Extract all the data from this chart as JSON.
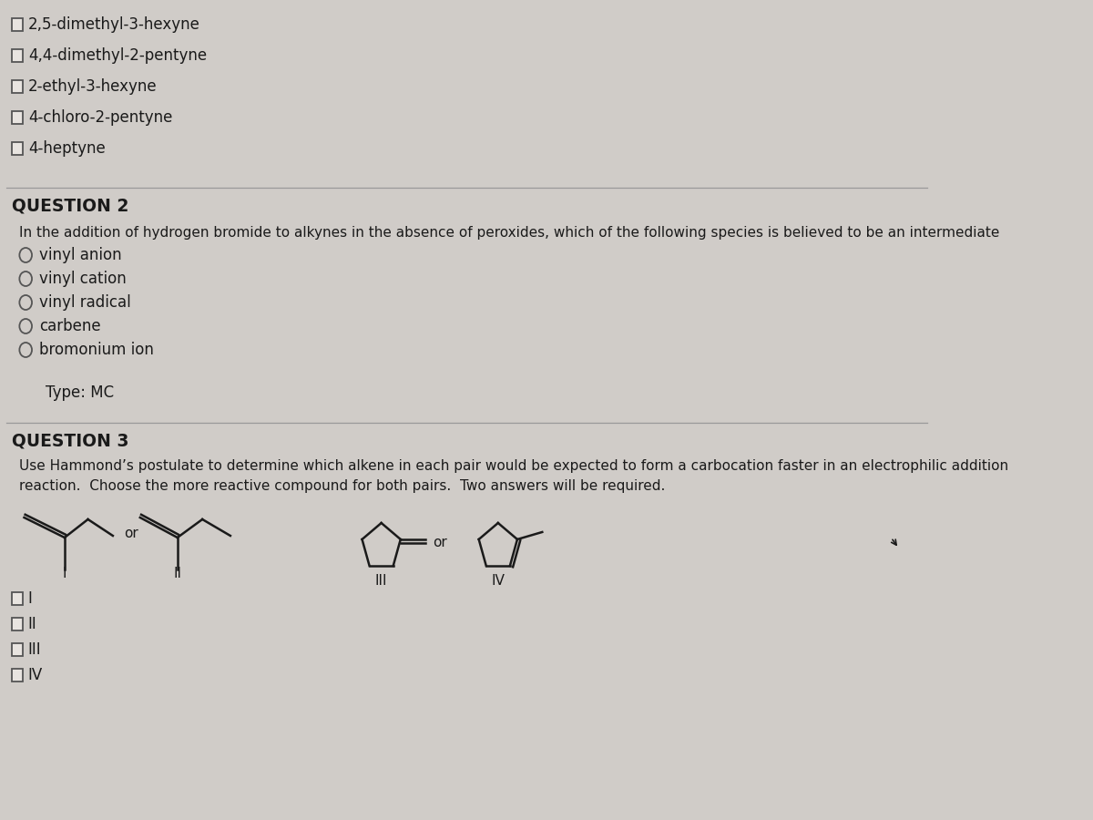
{
  "bg_color": "#d0ccc8",
  "text_color": "#1a1a1a",
  "section1": {
    "checkboxes": [
      "2,5-dimethyl-3-hexyne",
      "4,4-dimethyl-2-pentyne",
      "2-ethyl-3-hexyne",
      "4-chloro-2-pentyne",
      "4-heptyne"
    ]
  },
  "section2": {
    "header": "QUESTION 2",
    "question": "In the addition of hydrogen bromide to alkynes in the absence of peroxides, which of the following species is believed to be an intermediate",
    "options": [
      "vinyl anion",
      "vinyl cation",
      "vinyl radical",
      "carbene",
      "bromonium ion"
    ],
    "type_label": "Type: MC"
  },
  "section3": {
    "header": "QUESTION 3",
    "question_line1": "Use Hammond’s postulate to determine which alkene in each pair would be expected to form a carbocation faster in an electrophilic addition",
    "question_line2": "reaction.  Choose the more reactive compound for both pairs.  Two answers will be required.",
    "checkboxes": [
      "I",
      "II",
      "III",
      "IV"
    ]
  },
  "mol_lw": 1.8,
  "mol_color": "#1a1a1a"
}
